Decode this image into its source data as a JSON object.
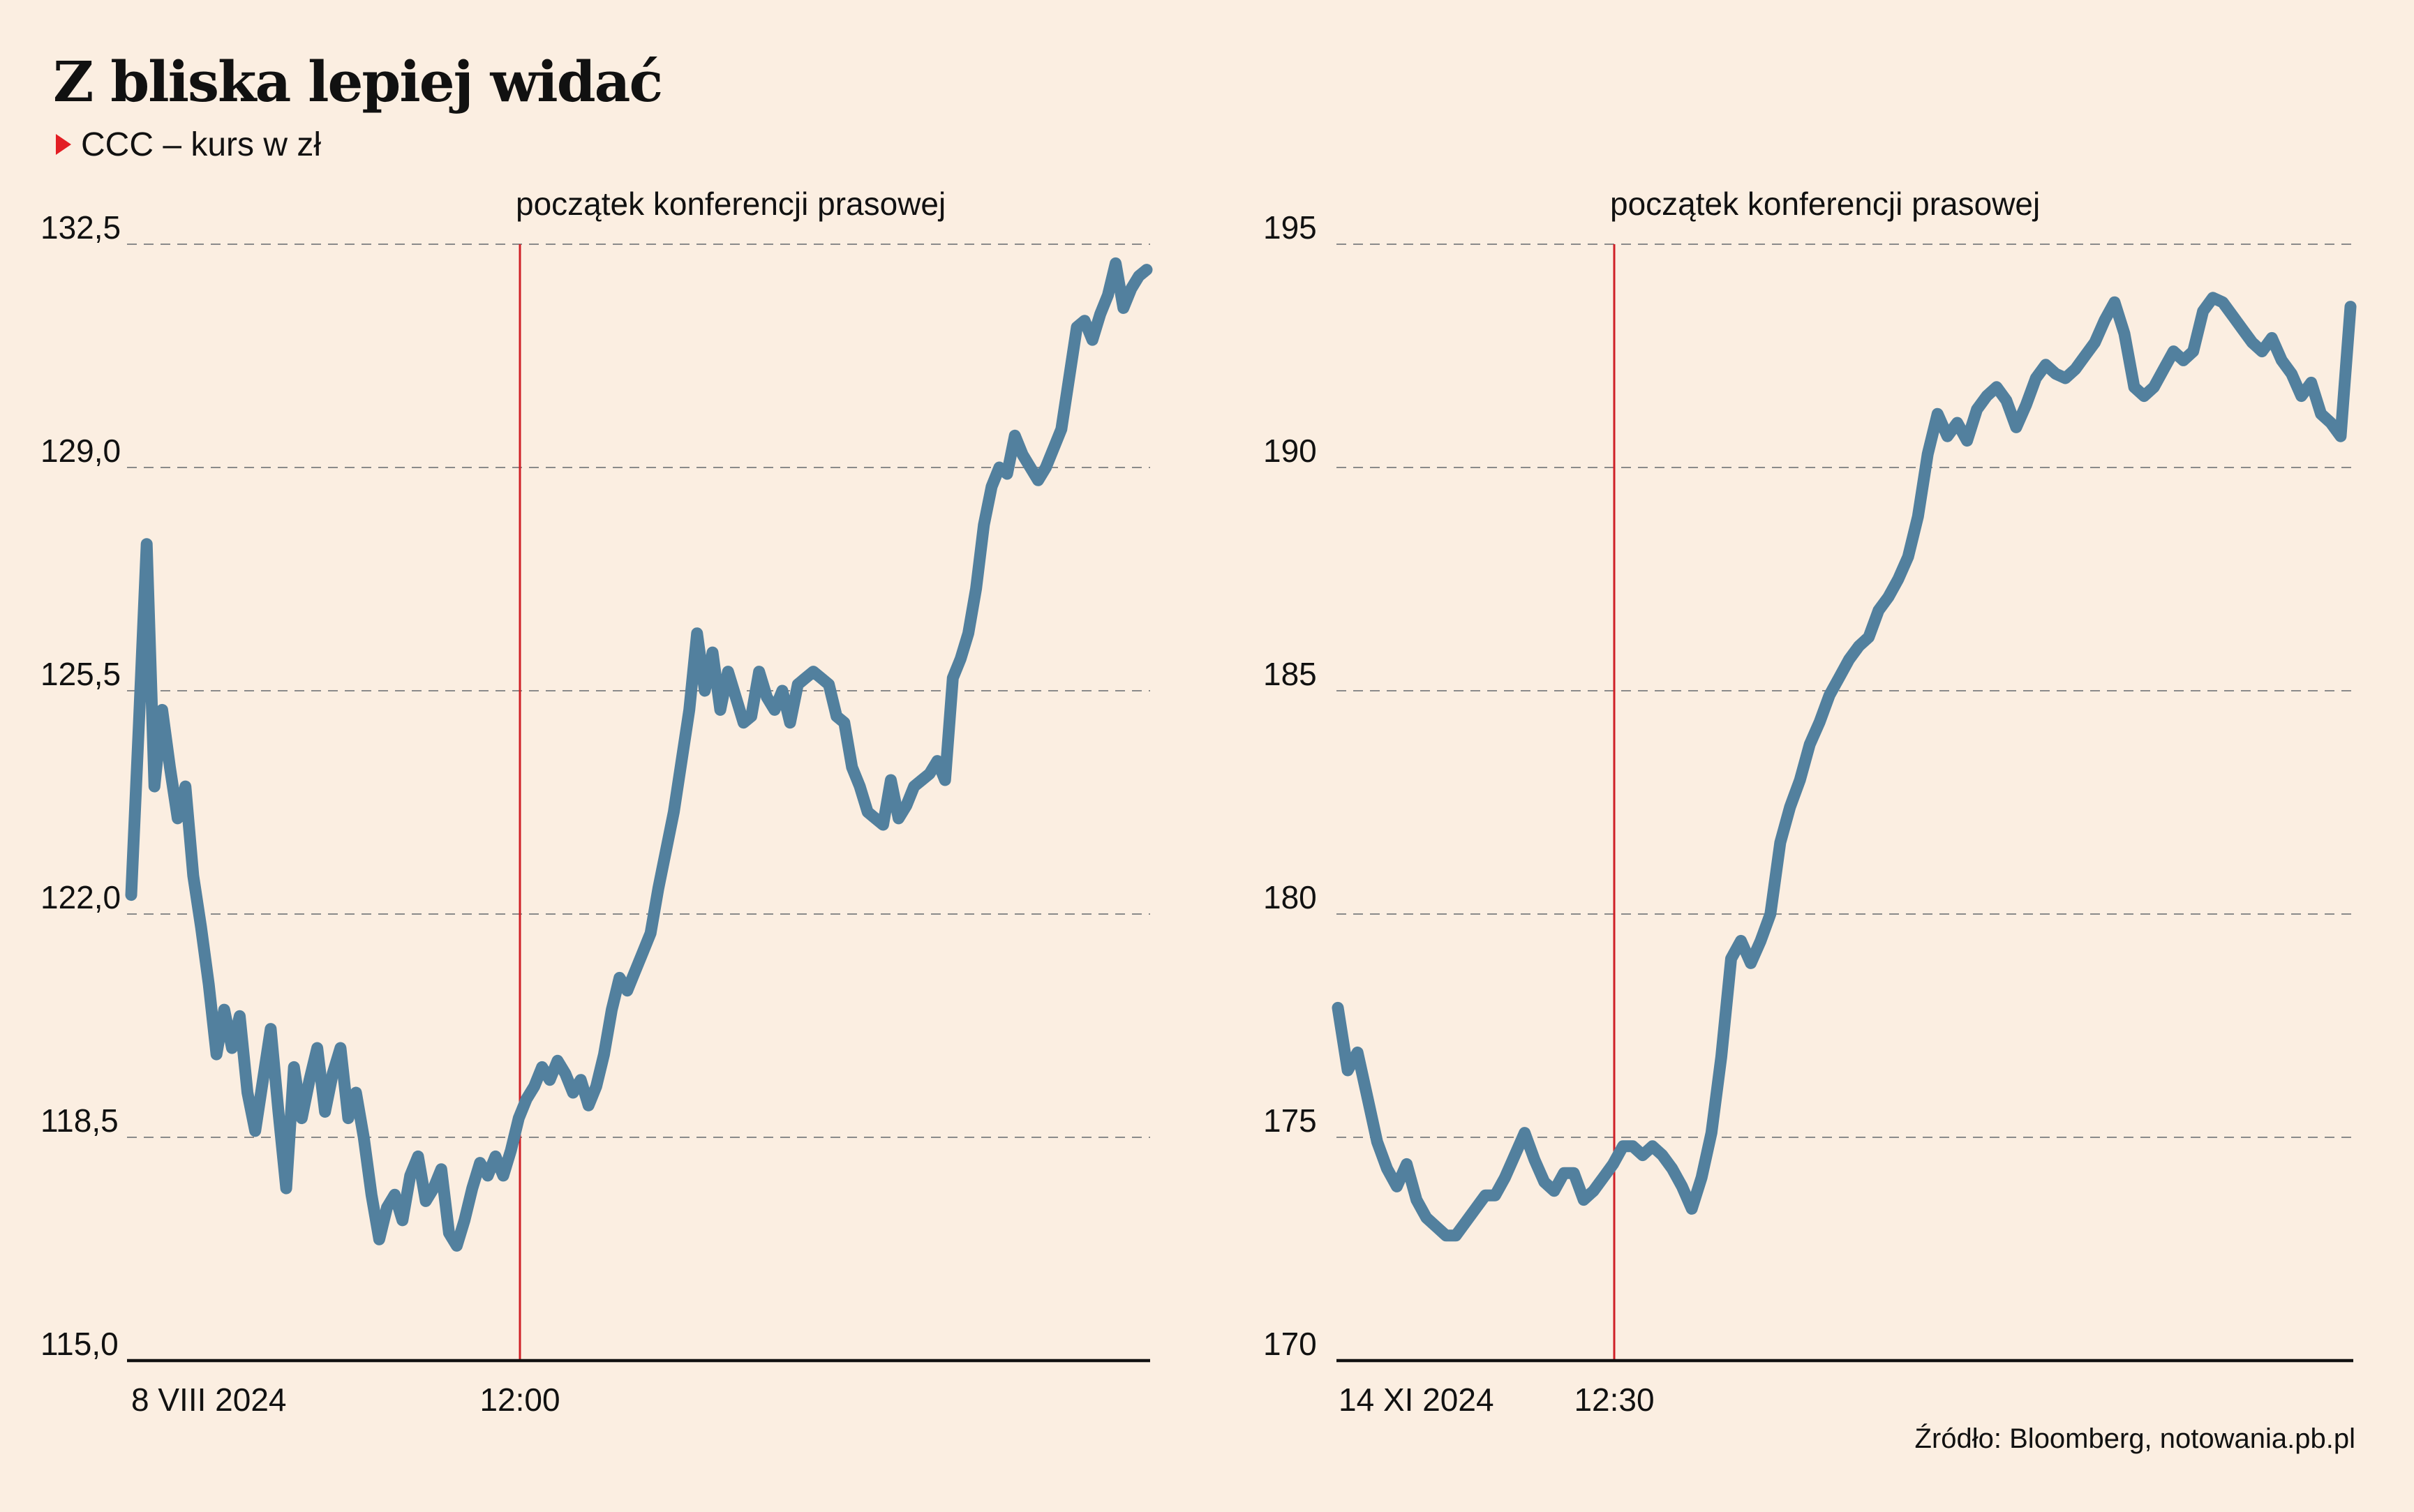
{
  "title": "Z bliska lepiej widać",
  "subtitle": "CCC – kurs w zł",
  "source": "Źródło: Bloomberg, notowania.pb.pl",
  "colors": {
    "background": "#fbeee1",
    "series": "#52809e",
    "marker": "#cf2026",
    "bullet": "#e31e24"
  },
  "chart_data": [
    {
      "type": "line",
      "title": "",
      "xlabel": "",
      "ylabel": "",
      "ylim": [
        115,
        132.5
      ],
      "y_ticks": [
        "132,5",
        "129,0",
        "125,5",
        "122,0",
        "118,5",
        "115,0"
      ],
      "x_tick_labels": [
        "8 VIII 2024",
        "12:00"
      ],
      "annotation": "początek konferencji prasowej",
      "grid": true,
      "series": [
        {
          "y": [
            122.3,
            125.0,
            127.8,
            124.0,
            125.2,
            124.3,
            123.5,
            124.0,
            122.6,
            121.8,
            120.9,
            119.8,
            120.5,
            119.9,
            120.4,
            119.2,
            118.6,
            119.4,
            120.2,
            118.9,
            117.7,
            119.6,
            118.8,
            119.4,
            119.9,
            118.9,
            119.5,
            119.9,
            118.8,
            119.2,
            118.5,
            117.6,
            116.9,
            117.4,
            117.6,
            117.2,
            117.9,
            118.2,
            117.5,
            117.7,
            118.0,
            117.0,
            116.8,
            117.2,
            117.7,
            118.1,
            117.9,
            118.2,
            117.9,
            118.3,
            118.8,
            119.1,
            119.3,
            119.6,
            119.4,
            119.7,
            119.5,
            119.2,
            119.4,
            119.0,
            119.3,
            119.8,
            120.5,
            121.0,
            120.8,
            121.1,
            121.4,
            121.7,
            122.4,
            123.0,
            123.6,
            124.4,
            125.2,
            126.4,
            125.5,
            126.1,
            125.2,
            125.8,
            125.4,
            125.0,
            125.1,
            125.8,
            125.4,
            125.2,
            125.5,
            125.0,
            125.6,
            125.7,
            125.8,
            125.7,
            125.6,
            125.1,
            125.0,
            124.3,
            124.0,
            123.6,
            123.5,
            123.4,
            124.1,
            123.5,
            123.7,
            124.0,
            124.1,
            124.2,
            124.4,
            124.1,
            125.7,
            126.0,
            126.4,
            127.1,
            128.1,
            128.7,
            129.0,
            128.9,
            129.5,
            129.2,
            129.0,
            128.8,
            129.0,
            129.3,
            129.6,
            130.4,
            131.2,
            131.3,
            131.0,
            131.4,
            131.7,
            132.2,
            131.5,
            131.8,
            132.0,
            132.1
          ]
        }
      ]
    },
    {
      "type": "line",
      "title": "",
      "xlabel": "",
      "ylabel": "",
      "ylim": [
        170,
        195
      ],
      "y_ticks": [
        "195",
        "190",
        "185",
        "180",
        "175",
        "170"
      ],
      "x_tick_labels": [
        "14 XI 2024",
        "12:30"
      ],
      "annotation": "początek konferencji prasowej",
      "grid": true,
      "series": [
        {
          "y": [
            177.9,
            176.5,
            176.9,
            175.9,
            174.9,
            174.3,
            173.9,
            174.4,
            173.6,
            173.2,
            173.0,
            172.8,
            172.8,
            173.1,
            173.4,
            173.7,
            173.7,
            174.1,
            174.6,
            175.1,
            174.5,
            174.0,
            173.8,
            174.2,
            174.2,
            173.6,
            173.8,
            174.1,
            174.4,
            174.8,
            174.8,
            174.6,
            174.8,
            174.6,
            174.3,
            173.9,
            173.4,
            174.1,
            175.1,
            176.8,
            179.0,
            179.4,
            178.9,
            179.4,
            180.0,
            181.6,
            182.4,
            183.0,
            183.8,
            184.3,
            184.9,
            185.3,
            185.7,
            186.0,
            186.2,
            186.8,
            187.1,
            187.5,
            188.0,
            188.9,
            190.3,
            191.2,
            190.7,
            191.0,
            190.6,
            191.3,
            191.6,
            191.8,
            191.5,
            190.9,
            191.4,
            192.0,
            192.3,
            192.1,
            192.0,
            192.2,
            192.5,
            192.8,
            193.3,
            193.7,
            193.0,
            191.8,
            191.6,
            191.8,
            192.2,
            192.6,
            192.4,
            192.6,
            193.5,
            193.8,
            193.7,
            193.4,
            193.1,
            192.8,
            192.6,
            192.9,
            192.4,
            192.1,
            191.6,
            191.9,
            191.2,
            191.0,
            190.7,
            193.6
          ]
        }
      ]
    }
  ]
}
